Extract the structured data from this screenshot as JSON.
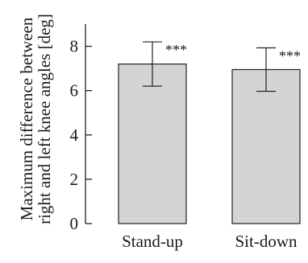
{
  "chart_data": {
    "type": "bar",
    "categories": [
      "Stand-up",
      "Sit-down"
    ],
    "values": [
      7.2,
      6.95
    ],
    "error": [
      1.0,
      0.98
    ],
    "significance": [
      "***",
      "***"
    ],
    "ylim": [
      0,
      9
    ],
    "yticks": [
      "0",
      "2",
      "4",
      "6",
      "8"
    ],
    "ylabel_lines": [
      "Maximum difference between",
      "right and left knee angles [deg]"
    ],
    "xlabel": "",
    "title": "",
    "grid": false,
    "bar_color": "#d4d4d4",
    "edge_color": "#222222"
  }
}
